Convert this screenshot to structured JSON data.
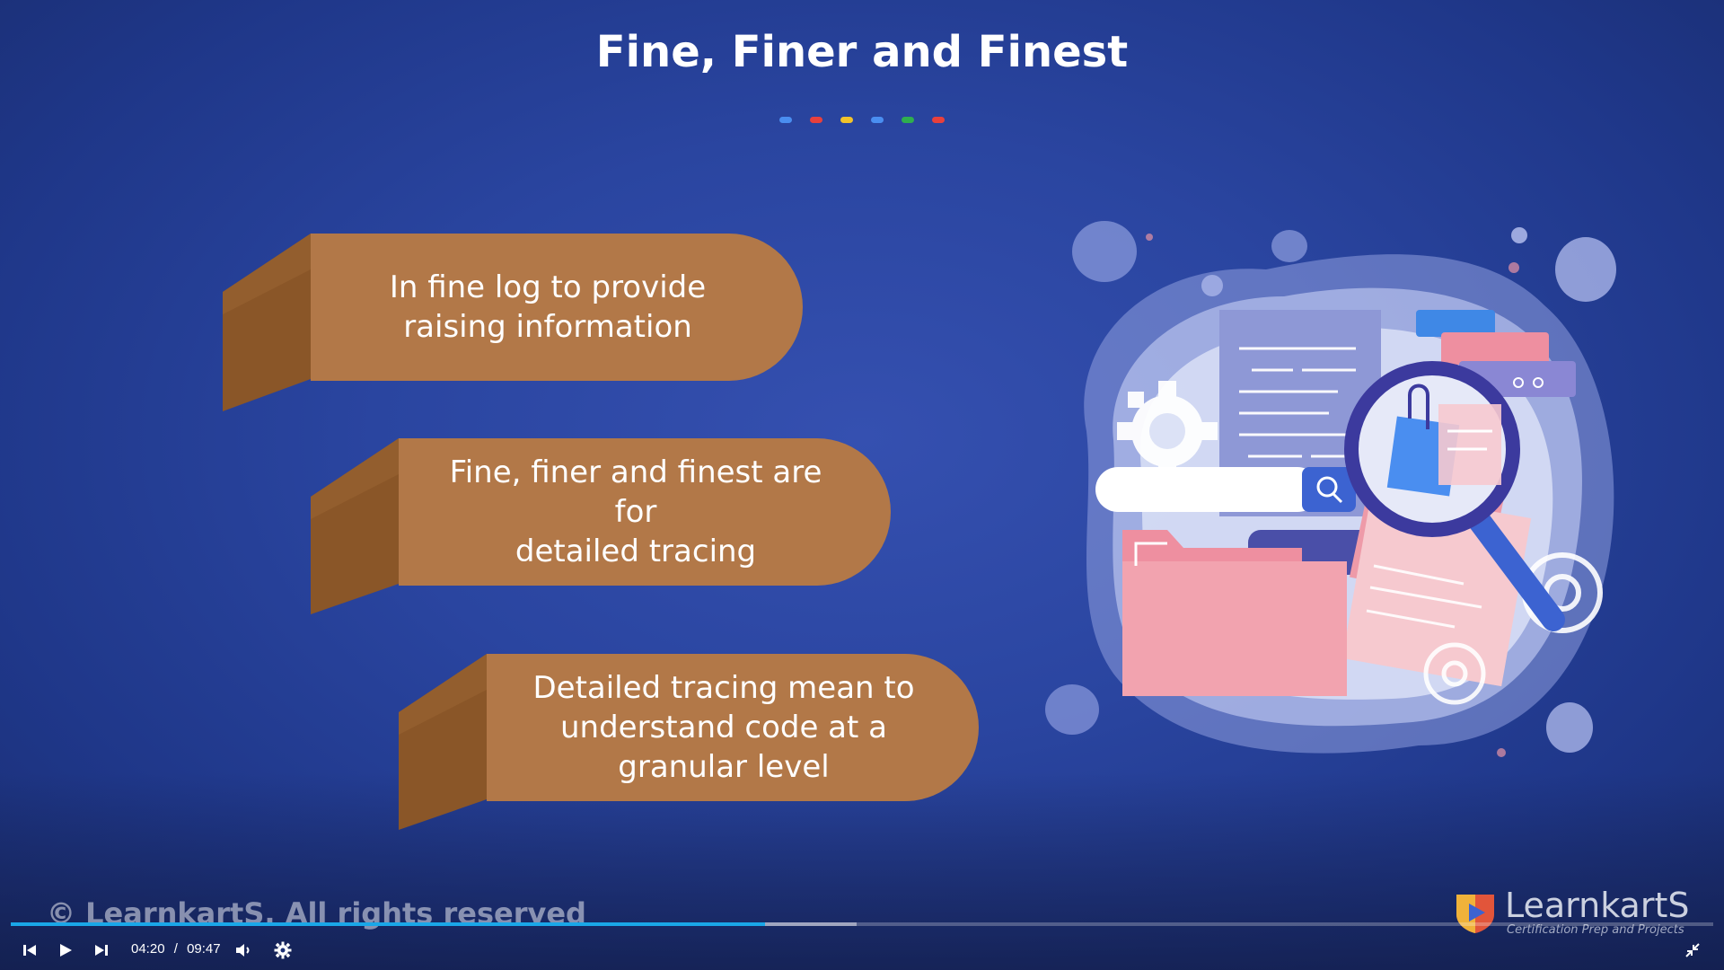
{
  "slide": {
    "title": "Fine, Finer and Finest",
    "dot_colors": [
      "#4a8ef0",
      "#e8403c",
      "#f2c32a",
      "#4a8ef0",
      "#2fae4e",
      "#e8403c"
    ],
    "ribbon_color": "#b27848",
    "ribbon_fold_color": "#8a5628",
    "points": [
      {
        "line1": "In fine log to provide",
        "line2": "raising information",
        "line3": ""
      },
      {
        "line1": "Fine, finer and finest are for",
        "line2": "detailed tracing",
        "line3": ""
      },
      {
        "line1": "Detailed tracing mean to",
        "line2": "understand code at a",
        "line3": "granular level"
      }
    ],
    "illustration_icon": "document-search-illustration",
    "copyright": "© LearnkartS. All rights reserved"
  },
  "brand": {
    "logo_icon": "learnkarts-play-shield-icon",
    "name": "LearnkartS",
    "tagline": "Certification Prep and Projects"
  },
  "player": {
    "current_time": "04:20",
    "separator": "/",
    "duration": "09:47",
    "played_fraction": 0.443,
    "buffered_fraction": 0.497,
    "accent_color": "#1aa7e8",
    "icons": {
      "previous": "skip-previous-icon",
      "play": "play-icon",
      "next": "skip-next-icon",
      "volume": "volume-icon",
      "settings": "gear-icon",
      "fullscreen": "exit-fullscreen-icon"
    }
  }
}
